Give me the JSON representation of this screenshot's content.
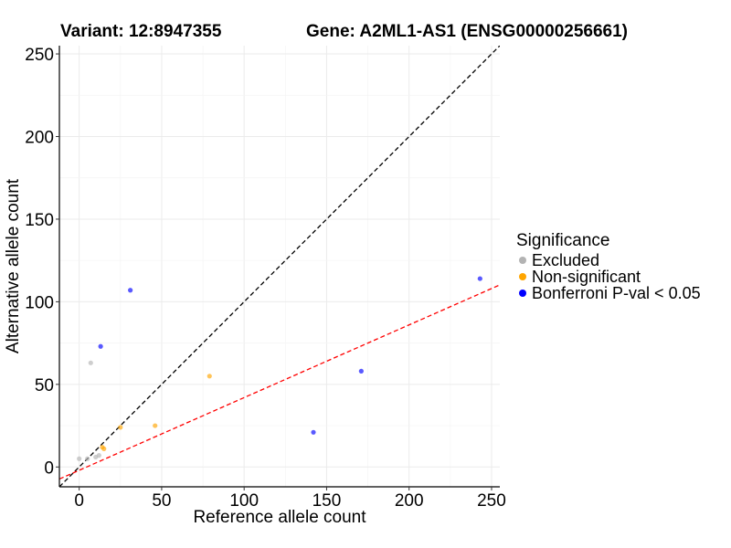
{
  "chart_data": {
    "type": "scatter",
    "title_left": "Variant: 12:8947355",
    "title_right": "Gene: A2ML1-AS1 (ENSG00000256661)",
    "xlabel": "Reference allele count",
    "ylabel": "Alternative allele count",
    "xlim": [
      -12,
      255
    ],
    "ylim": [
      -12,
      255
    ],
    "xticks": [
      0,
      50,
      100,
      150,
      200,
      250
    ],
    "yticks": [
      0,
      50,
      100,
      150,
      200,
      250
    ],
    "grid": true,
    "legend": {
      "title": "Significance",
      "placement": "right",
      "entries": [
        {
          "label": "Excluded",
          "color": "#b3b3b3"
        },
        {
          "label": "Non-significant",
          "color": "#ffa500"
        },
        {
          "label": "Bonferroni P-val < 0.05",
          "color": "#0000ff"
        }
      ]
    },
    "series": [
      {
        "name": "Excluded",
        "color": "#b3b3b3",
        "points": [
          [
            0,
            5
          ],
          [
            5,
            5
          ],
          [
            7,
            63
          ],
          [
            10,
            6
          ],
          [
            12,
            7
          ]
        ]
      },
      {
        "name": "Non-significant",
        "color": "#ffa500",
        "points": [
          [
            14,
            12
          ],
          [
            15,
            11
          ],
          [
            25,
            24
          ],
          [
            46,
            25
          ],
          [
            79,
            55
          ]
        ]
      },
      {
        "name": "Bonferroni P-val < 0.05",
        "color": "#0000ff",
        "points": [
          [
            13,
            73
          ],
          [
            31,
            107
          ],
          [
            142,
            21
          ],
          [
            171,
            58
          ],
          [
            243,
            114
          ]
        ]
      }
    ],
    "reference_lines": [
      {
        "name": "identity",
        "color": "#000000",
        "dash": "dashed",
        "slope": 1,
        "intercept": 0
      },
      {
        "name": "fit",
        "color": "#ff0000",
        "dash": "dashed",
        "slope": 0.44,
        "intercept": -2
      }
    ]
  }
}
